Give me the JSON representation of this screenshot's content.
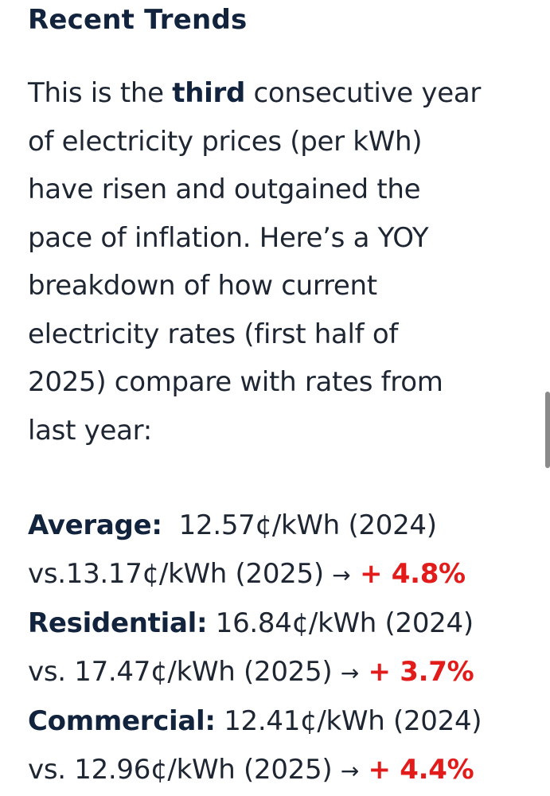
{
  "heading": "Recent Trends",
  "intro": {
    "l1_pre": "This is the ",
    "l1_bold": "third",
    "l1_post": " consecutive year",
    "l2": "of electricity prices (per kWh)",
    "l3": "have risen and outgained the",
    "l4": "pace of inflation.  Here’s a YOY",
    "l5": "breakdown of how current",
    "l6": "electricity rates (first half of",
    "l7": "2025) compare with rates from",
    "l8": "last year:"
  },
  "rates": [
    {
      "label": "Average:",
      "line1_value": "  12.57¢/kWh (2024)",
      "line2_value": "vs.13.17¢/kWh (2025) ",
      "arrow": "→",
      "change": " + 4.8%"
    },
    {
      "label": "Residential:",
      "line1_value": " 16.84¢/kWh (2024)",
      "line2_value": "vs. 17.47¢/kWh (2025) ",
      "arrow": "→",
      "change": " + 3.7%"
    },
    {
      "label": "Commercial:",
      "line1_value": " 12.41¢/kWh (2024)",
      "line2_value": "vs. 12.96¢/kWh (2025) ",
      "arrow": "→",
      "change": " + 4.4%"
    }
  ],
  "colors": {
    "heading": "#12233d",
    "body_text": "#1e2633",
    "increase": "#e21b1b"
  }
}
